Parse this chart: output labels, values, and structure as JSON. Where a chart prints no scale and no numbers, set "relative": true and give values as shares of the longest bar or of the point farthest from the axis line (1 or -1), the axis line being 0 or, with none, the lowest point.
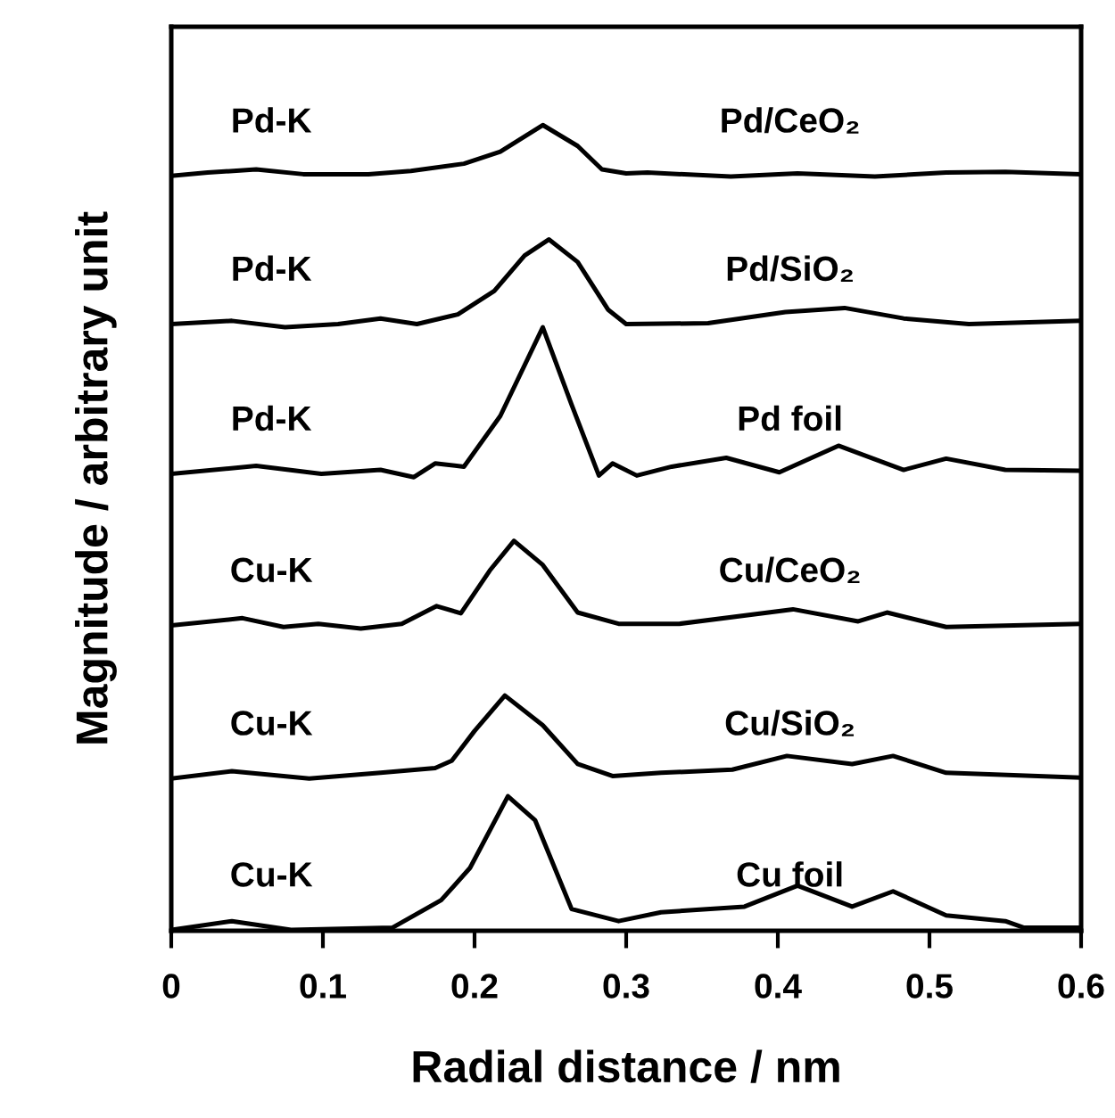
{
  "chart_data": {
    "type": "line",
    "relative": true,
    "xlabel": "Radial distance / nm",
    "ylabel": "Magnitude / arbitrary unit",
    "xlim": [
      0,
      0.6
    ],
    "xticks": [
      0,
      0.1,
      0.2,
      0.3,
      0.4,
      0.5,
      0.6
    ],
    "grid": false,
    "legend": false,
    "marker": "none",
    "line_style": "solid",
    "annotations": [
      "Pd-K",
      "Pd-K",
      "Pd-K",
      "Cu-K",
      "Cu-K",
      "Cu-K"
    ],
    "series": [
      {
        "name": "Pd/CeO₂",
        "color": "#000000",
        "x": [
          0,
          0.024,
          0.056,
          0.087,
          0.13,
          0.158,
          0.193,
          0.217,
          0.245,
          0.268,
          0.284,
          0.3,
          0.314,
          0.369,
          0.413,
          0.464,
          0.511,
          0.55,
          0.6
        ],
        "values": [
          0.937,
          0.941,
          0.945,
          0.939,
          0.939,
          0.943,
          0.952,
          0.967,
          1.0,
          0.974,
          0.945,
          0.94,
          0.941,
          0.936,
          0.94,
          0.936,
          0.941,
          0.942,
          0.939
        ]
      },
      {
        "name": "Pd/SiO₂",
        "color": "#000000",
        "x": [
          0,
          0.04,
          0.075,
          0.11,
          0.138,
          0.162,
          0.189,
          0.213,
          0.233,
          0.249,
          0.268,
          0.288,
          0.3,
          0.354,
          0.405,
          0.444,
          0.483,
          0.526,
          0.6
        ],
        "values": [
          0.753,
          0.757,
          0.749,
          0.753,
          0.76,
          0.753,
          0.765,
          0.794,
          0.838,
          0.858,
          0.83,
          0.771,
          0.753,
          0.754,
          0.768,
          0.773,
          0.76,
          0.753,
          0.757
        ]
      },
      {
        "name": "Pd foil",
        "color": "#000000",
        "x": [
          0,
          0.056,
          0.099,
          0.138,
          0.16,
          0.174,
          0.193,
          0.217,
          0.245,
          0.264,
          0.282,
          0.291,
          0.307,
          0.33,
          0.366,
          0.401,
          0.44,
          0.483,
          0.511,
          0.55,
          0.6
        ],
        "values": [
          0.567,
          0.577,
          0.567,
          0.572,
          0.563,
          0.58,
          0.576,
          0.639,
          0.749,
          0.653,
          0.565,
          0.58,
          0.565,
          0.576,
          0.587,
          0.569,
          0.602,
          0.572,
          0.586,
          0.572,
          0.571
        ]
      },
      {
        "name": "Cu/CeO₂",
        "color": "#000000",
        "x": [
          0,
          0.047,
          0.074,
          0.097,
          0.125,
          0.152,
          0.175,
          0.191,
          0.21,
          0.226,
          0.245,
          0.268,
          0.295,
          0.335,
          0.41,
          0.453,
          0.472,
          0.511,
          0.6
        ],
        "values": [
          0.379,
          0.388,
          0.377,
          0.381,
          0.375,
          0.381,
          0.403,
          0.394,
          0.447,
          0.484,
          0.454,
          0.395,
          0.381,
          0.381,
          0.399,
          0.384,
          0.395,
          0.377,
          0.381
        ]
      },
      {
        "name": "Cu/SiO₂",
        "color": "#000000",
        "x": [
          0,
          0.04,
          0.091,
          0.138,
          0.174,
          0.185,
          0.2,
          0.22,
          0.245,
          0.268,
          0.291,
          0.323,
          0.37,
          0.406,
          0.449,
          0.476,
          0.511,
          0.6
        ],
        "values": [
          0.189,
          0.198,
          0.189,
          0.196,
          0.202,
          0.211,
          0.248,
          0.292,
          0.255,
          0.207,
          0.192,
          0.196,
          0.2,
          0.217,
          0.207,
          0.217,
          0.196,
          0.19
        ]
      },
      {
        "name": "Cu foil",
        "color": "#000000",
        "x": [
          0,
          0.04,
          0.079,
          0.146,
          0.178,
          0.197,
          0.222,
          0.24,
          0.264,
          0.295,
          0.323,
          0.378,
          0.413,
          0.449,
          0.476,
          0.511,
          0.55,
          0.562,
          0.6
        ],
        "values": [
          0.001,
          0.012,
          0.001,
          0.004,
          0.038,
          0.078,
          0.167,
          0.137,
          0.027,
          0.012,
          0.023,
          0.03,
          0.056,
          0.03,
          0.049,
          0.019,
          0.012,
          0.004,
          0.004
        ]
      }
    ]
  }
}
